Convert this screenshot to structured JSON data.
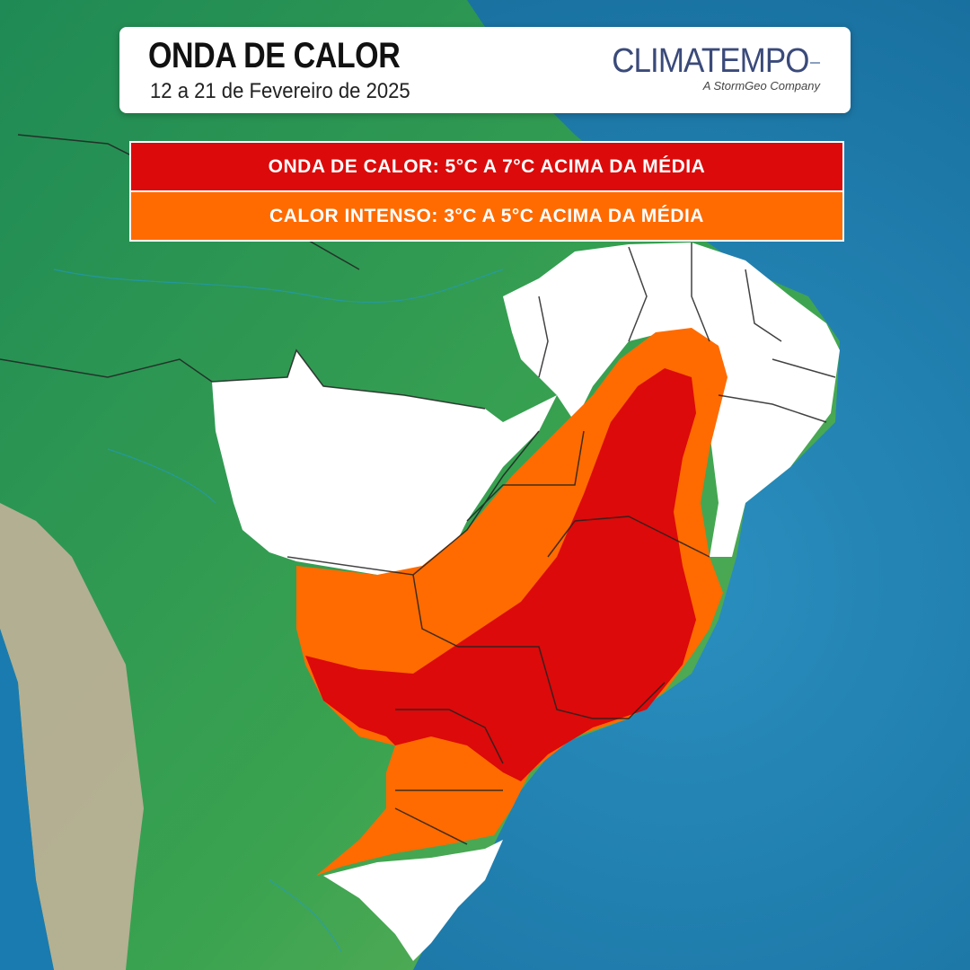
{
  "header": {
    "title": "ONDA DE CALOR",
    "subtitle": "12 a 21 de Fevereiro de 2025",
    "logo_name": "CLIMATEMPO",
    "logo_tagline": "A StormGeo Company"
  },
  "legend": [
    {
      "label": "ONDA DE CALOR: 5°C A 7°C ACIMA DA MÉDIA",
      "color": "#dc0a0a"
    },
    {
      "label": "CALOR INTENSO: 3°C A 5°C ACIMA DA MÉDIA",
      "color": "#ff6b00"
    }
  ],
  "colors": {
    "ocean": "#1f7fa8",
    "land": "#2e9e4f",
    "andes": "#b9a48a",
    "neutral_area": "#ffffff"
  }
}
